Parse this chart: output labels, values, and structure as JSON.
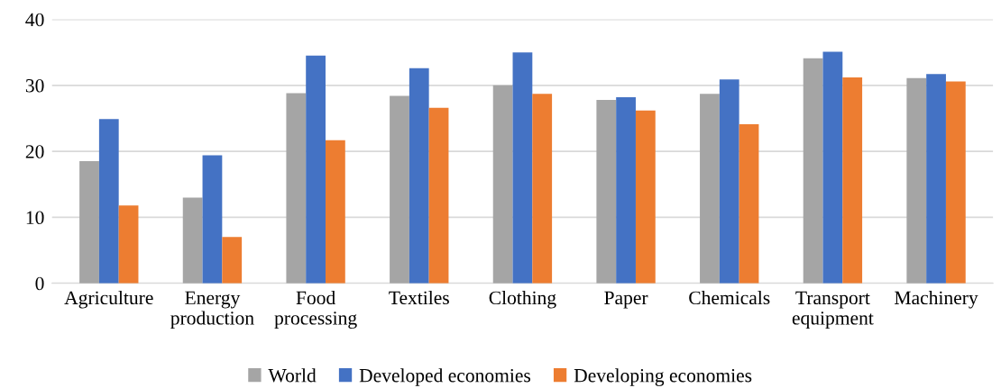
{
  "chart_data": {
    "type": "bar",
    "categories": [
      "Agriculture",
      "Energy\nproduction",
      "Food\nprocessing",
      "Textiles",
      "Clothing",
      "Paper",
      "Chemicals",
      "Transport\nequipment",
      "Machinery"
    ],
    "series": [
      {
        "name": "World",
        "color": "#a5a5a5",
        "values": [
          18.5,
          13.0,
          28.8,
          28.4,
          30.0,
          27.8,
          28.7,
          34.1,
          31.1
        ]
      },
      {
        "name": "Developed economies",
        "color": "#4472c4",
        "values": [
          24.9,
          19.4,
          34.5,
          32.6,
          35.0,
          28.2,
          30.9,
          35.1,
          31.7
        ]
      },
      {
        "name": "Developing economies",
        "color": "#ed7d31",
        "values": [
          11.8,
          7.0,
          21.7,
          26.6,
          28.7,
          26.2,
          24.1,
          31.2,
          30.6
        ]
      }
    ],
    "ylim": [
      0,
      40
    ],
    "yticks": [
      0,
      10,
      20,
      30,
      40
    ],
    "grid": "y",
    "legend": "bottom"
  }
}
